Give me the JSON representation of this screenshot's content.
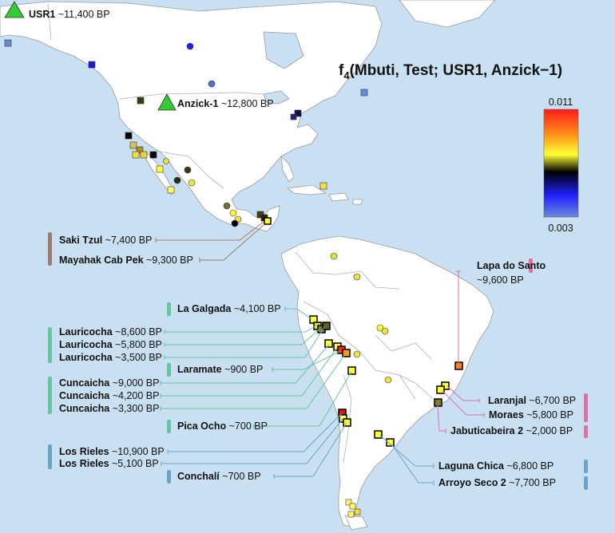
{
  "title": {
    "main": "f",
    "sub": "4",
    "args": "(Mbuti, Test; USR1, Anzick−1)"
  },
  "colorbar": {
    "max_label": "0.011",
    "min_label": "0.003",
    "stops": [
      "#ff1a1a",
      "#ff9a1a",
      "#ffff33",
      "#000000",
      "#2020ff",
      "#6a8ad8"
    ]
  },
  "colors": {
    "ocean": "#c9dff2",
    "land": "#ffffff",
    "border": "#b0b0b0",
    "triangle": "#33cc33",
    "line_teal": "#68c3a0",
    "line_brown": "#a07a6c",
    "line_pink": "#e070a8",
    "line_blue": "#6aa4c8"
  },
  "reference_samples": [
    {
      "name": "USR1",
      "age": " ~11,400 BP"
    },
    {
      "name": "Anzick-1",
      "age": " ~12,800 BP"
    }
  ],
  "labels": [
    {
      "id": "saki-tzul",
      "name": "Saki Tzul",
      "age": " ~7,400 BP",
      "group": "brown"
    },
    {
      "id": "mayahak-cab-pek",
      "name": "Mayahak Cab Pek",
      "age": " ~9,300 BP",
      "group": "brown"
    },
    {
      "id": "lapa-do-santo",
      "name": "Lapa do Santo",
      "age": "~9,600 BP",
      "group": "pink"
    },
    {
      "id": "la-galgada",
      "name": "La Galgada",
      "age": " ~4,100 BP",
      "group": "teal"
    },
    {
      "id": "lauricocha-1",
      "name": "Lauricocha",
      "age": " ~8,600 BP",
      "group": "teal"
    },
    {
      "id": "lauricocha-2",
      "name": "Lauricocha",
      "age": " ~5,800 BP",
      "group": "teal"
    },
    {
      "id": "lauricocha-3",
      "name": "Lauricocha",
      "age": " ~3,500 BP",
      "group": "teal"
    },
    {
      "id": "laramate",
      "name": "Laramate",
      "age": " ~900 BP",
      "group": "teal"
    },
    {
      "id": "cuncaicha-1",
      "name": "Cuncaicha",
      "age": " ~9,000 BP",
      "group": "teal"
    },
    {
      "id": "cuncaicha-2",
      "name": "Cuncaicha",
      "age": " ~4,200 BP",
      "group": "teal"
    },
    {
      "id": "cuncaicha-3",
      "name": "Cuncaicha",
      "age": " ~3,300 BP",
      "group": "teal"
    },
    {
      "id": "pica-ocho",
      "name": "Pica Ocho",
      "age": " ~700 BP",
      "group": "teal"
    },
    {
      "id": "los-rieles-1",
      "name": "Los Rieles",
      "age": " ~10,900 BP",
      "group": "blue"
    },
    {
      "id": "los-rieles-2",
      "name": "Los Rieles",
      "age": " ~5,100 BP",
      "group": "blue"
    },
    {
      "id": "conchali",
      "name": "Conchalí",
      "age": " ~700 BP",
      "group": "blue"
    },
    {
      "id": "laranjal",
      "name": "Laranjal",
      "age": " ~6,700 BP",
      "group": "pink"
    },
    {
      "id": "moraes",
      "name": "Moraes",
      "age": " ~5,800 BP",
      "group": "pink"
    },
    {
      "id": "jabuticabeira-2",
      "name": "Jabuticabeira 2",
      "age": " ~2,000 BP",
      "group": "pink"
    },
    {
      "id": "laguna-chica",
      "name": "Laguna Chica",
      "age": " ~6,800 BP",
      "group": "blue"
    },
    {
      "id": "arroyo-seco-2",
      "name": "Arroyo Seco 2",
      "age": " ~7,700 BP",
      "group": "blue"
    }
  ]
}
